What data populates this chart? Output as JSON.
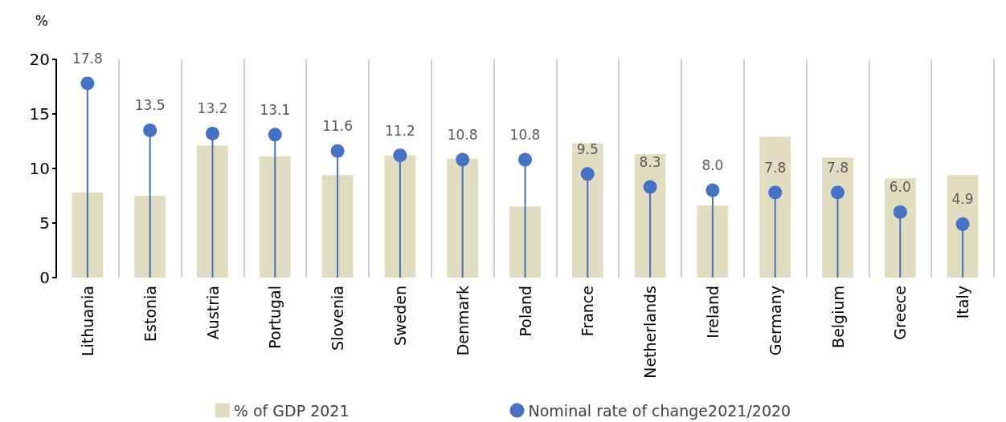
{
  "chart_data": {
    "type": "bar",
    "ylabel": "%",
    "categories": [
      "Lithuania",
      "Estonia",
      "Austria",
      "Portugal",
      "Slovenia",
      "Sweden",
      "Denmark",
      "Poland",
      "France",
      "Netherlands",
      "Ireland",
      "Germany",
      "Belgium",
      "Greece",
      "Italy"
    ],
    "series": [
      {
        "name": "% of GDP 2021",
        "color": "#e2dcc0",
        "values": [
          7.8,
          7.5,
          12.1,
          11.1,
          9.4,
          11.2,
          10.9,
          6.5,
          12.3,
          11.3,
          6.6,
          12.9,
          11.0,
          9.1,
          9.4
        ]
      },
      {
        "name": "Nominal rate of change2021/2020",
        "type": "lollipop",
        "color": "#4472c4",
        "marker": "circle",
        "values": [
          17.8,
          13.5,
          13.2,
          13.1,
          11.6,
          11.2,
          10.8,
          10.8,
          9.5,
          8.3,
          8.0,
          7.8,
          7.8,
          6.0,
          4.9
        ],
        "value_labels": [
          "17.8",
          "13.5",
          "13.2",
          "13.1",
          "11.6",
          "11.2",
          "10.8",
          "10.8",
          "9.5",
          "8.3",
          "8.0",
          "7.8",
          "7.8",
          "6.0",
          "4.9"
        ]
      }
    ],
    "ylim": [
      0,
      20
    ],
    "yticks": [
      0,
      5,
      10,
      15,
      20
    ],
    "grid": "x",
    "legend": "bottom"
  }
}
